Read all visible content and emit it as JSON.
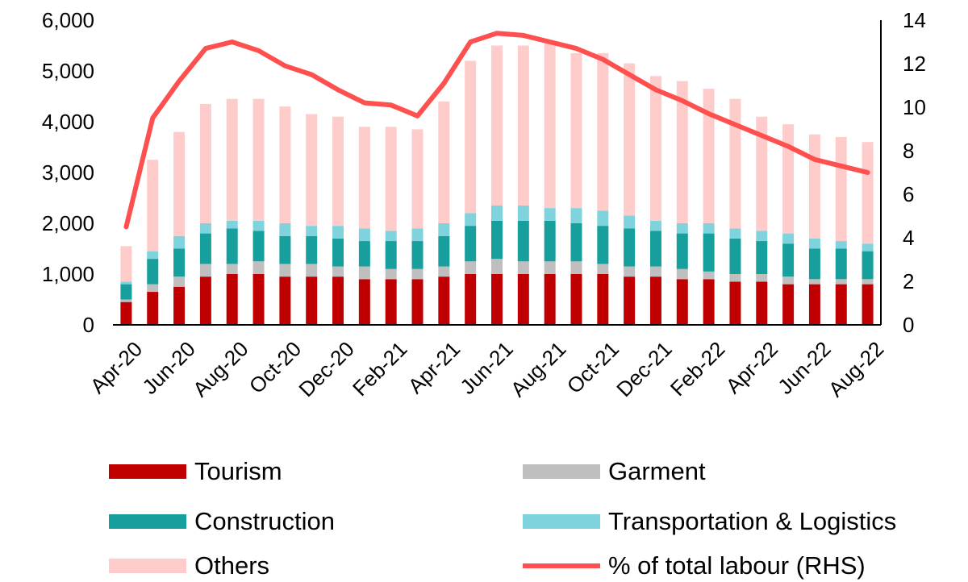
{
  "chart_data": {
    "type": "bar",
    "stacked": true,
    "combo": "bar+line",
    "categories": [
      "Apr-20",
      "May-20",
      "Jun-20",
      "Jul-20",
      "Aug-20",
      "Sep-20",
      "Oct-20",
      "Nov-20",
      "Dec-20",
      "Jan-21",
      "Feb-21",
      "Mar-21",
      "Apr-21",
      "May-21",
      "Jun-21",
      "Jul-21",
      "Aug-21",
      "Sep-21",
      "Oct-21",
      "Nov-21",
      "Dec-21",
      "Jan-22",
      "Feb-22",
      "Mar-22",
      "Apr-22",
      "May-22",
      "Jun-22",
      "Jul-22",
      "Aug-22"
    ],
    "x_tick_labels": [
      "Apr-20",
      "Jun-20",
      "Aug-20",
      "Oct-20",
      "Dec-20",
      "Feb-21",
      "Apr-21",
      "Jun-21",
      "Aug-21",
      "Oct-21",
      "Dec-21",
      "Feb-22",
      "Apr-22",
      "Jun-22",
      "Aug-22"
    ],
    "y_left": {
      "min": 0,
      "max": 6000,
      "ticks": [
        0,
        1000,
        2000,
        3000,
        4000,
        5000,
        6000
      ],
      "tick_labels": [
        "0",
        "1,000",
        "2,000",
        "3,000",
        "4,000",
        "5,000",
        "6,000"
      ]
    },
    "y_right": {
      "min": 0,
      "max": 14,
      "ticks": [
        0,
        2,
        4,
        6,
        8,
        10,
        12,
        14
      ],
      "tick_labels": [
        "0",
        "2",
        "4",
        "6",
        "8",
        "10",
        "12",
        "14"
      ]
    },
    "grid": false,
    "legend_position": "bottom",
    "series": [
      {
        "name": "Tourism",
        "type": "bar",
        "axis": "left",
        "color": "#c00000",
        "values": [
          450,
          650,
          750,
          950,
          1000,
          1000,
          950,
          950,
          950,
          900,
          900,
          900,
          950,
          1000,
          1000,
          1000,
          1000,
          1000,
          1000,
          950,
          950,
          900,
          900,
          850,
          850,
          800,
          800,
          800,
          800
        ]
      },
      {
        "name": "Garment",
        "type": "bar",
        "axis": "left",
        "color": "#bfbfbf",
        "values": [
          50,
          150,
          200,
          250,
          200,
          250,
          250,
          250,
          200,
          250,
          200,
          200,
          200,
          250,
          300,
          250,
          250,
          250,
          200,
          200,
          200,
          200,
          150,
          150,
          150,
          150,
          100,
          100,
          100
        ]
      },
      {
        "name": "Construction",
        "type": "bar",
        "axis": "left",
        "color": "#169f9c",
        "values": [
          300,
          500,
          550,
          600,
          700,
          600,
          550,
          550,
          550,
          500,
          550,
          550,
          600,
          700,
          750,
          800,
          800,
          750,
          750,
          750,
          700,
          700,
          750,
          700,
          650,
          650,
          600,
          600,
          550
        ]
      },
      {
        "name": "Transportation & Logistics",
        "type": "bar",
        "axis": "left",
        "color": "#7fd3dd",
        "values": [
          50,
          150,
          250,
          200,
          150,
          200,
          250,
          200,
          250,
          250,
          200,
          250,
          250,
          250,
          300,
          300,
          250,
          300,
          300,
          250,
          200,
          200,
          200,
          200,
          200,
          200,
          200,
          150,
          150
        ]
      },
      {
        "name": "Others",
        "type": "bar",
        "axis": "left",
        "color": "#ffcccc",
        "values": [
          700,
          1800,
          2050,
          2350,
          2400,
          2400,
          2300,
          2200,
          2150,
          2000,
          2050,
          1950,
          2400,
          3000,
          3150,
          3150,
          3250,
          3050,
          3100,
          3000,
          2850,
          2800,
          2650,
          2550,
          2250,
          2150,
          2050,
          2050,
          2000
        ]
      },
      {
        "name": "% of total labour (RHS)",
        "type": "line",
        "axis": "right",
        "color": "#ff5050",
        "values": [
          4.5,
          9.5,
          11.2,
          12.7,
          13.0,
          12.6,
          11.9,
          11.5,
          10.8,
          10.2,
          10.1,
          9.6,
          11.1,
          13.0,
          13.4,
          13.3,
          13.0,
          12.7,
          12.2,
          11.5,
          10.8,
          10.3,
          9.7,
          9.2,
          8.7,
          8.2,
          7.6,
          7.3,
          7.0
        ]
      }
    ]
  }
}
